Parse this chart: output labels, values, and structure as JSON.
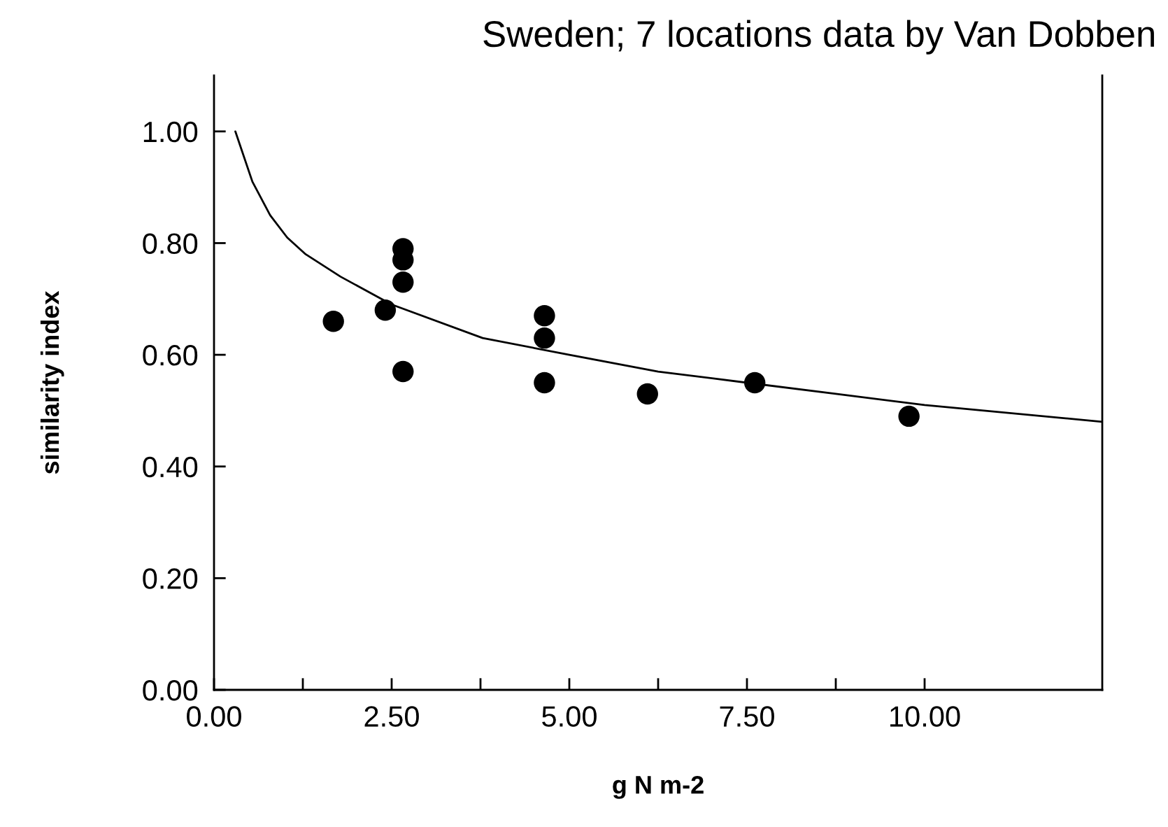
{
  "chart_data": {
    "type": "scatter",
    "title": "Sweden; 7 locations data by Van Dobben",
    "xlabel": "g N m-2",
    "ylabel": "similarity index",
    "xlim": [
      0,
      12.5
    ],
    "ylim": [
      0,
      1.1
    ],
    "xticks": [
      {
        "value": 0,
        "label": "0.00"
      },
      {
        "value": 1.25,
        "label": null
      },
      {
        "value": 2.5,
        "label": "2.50"
      },
      {
        "value": 3.75,
        "label": null
      },
      {
        "value": 5,
        "label": "5.00"
      },
      {
        "value": 6.25,
        "label": null
      },
      {
        "value": 7.5,
        "label": "7.50"
      },
      {
        "value": 8.75,
        "label": null
      },
      {
        "value": 10,
        "label": "10.00"
      }
    ],
    "yticks": [
      {
        "value": 0,
        "label": "0.00"
      },
      {
        "value": 0.2,
        "label": "0.20"
      },
      {
        "value": 0.4,
        "label": "0.40"
      },
      {
        "value": 0.6,
        "label": "0.60"
      },
      {
        "value": 0.8,
        "label": "0.80"
      },
      {
        "value": 1.0,
        "label": "1.00"
      }
    ],
    "grid": false,
    "series": [
      {
        "color": "#000000",
        "marker": "circle",
        "x": [
          1.68,
          2.41,
          2.66,
          2.66,
          2.66,
          2.66,
          4.65,
          4.65,
          4.65,
          6.1,
          7.61,
          9.78
        ],
        "values": [
          0.66,
          0.68,
          0.79,
          0.77,
          0.73,
          0.57,
          0.67,
          0.63,
          0.55,
          0.53,
          0.55,
          0.49
        ]
      },
      {
        "type": "line",
        "color": "#000000",
        "line_style": "solid",
        "x": [
          0.3,
          0.54,
          0.79,
          1.03,
          1.29,
          1.78,
          2.5,
          3.78,
          5.0,
          6.25,
          7.5,
          8.75,
          10.0,
          12.5
        ],
        "values": [
          1.0,
          0.91,
          0.85,
          0.81,
          0.78,
          0.74,
          0.69,
          0.63,
          0.6,
          0.57,
          0.55,
          0.53,
          0.51,
          0.48
        ]
      }
    ]
  }
}
